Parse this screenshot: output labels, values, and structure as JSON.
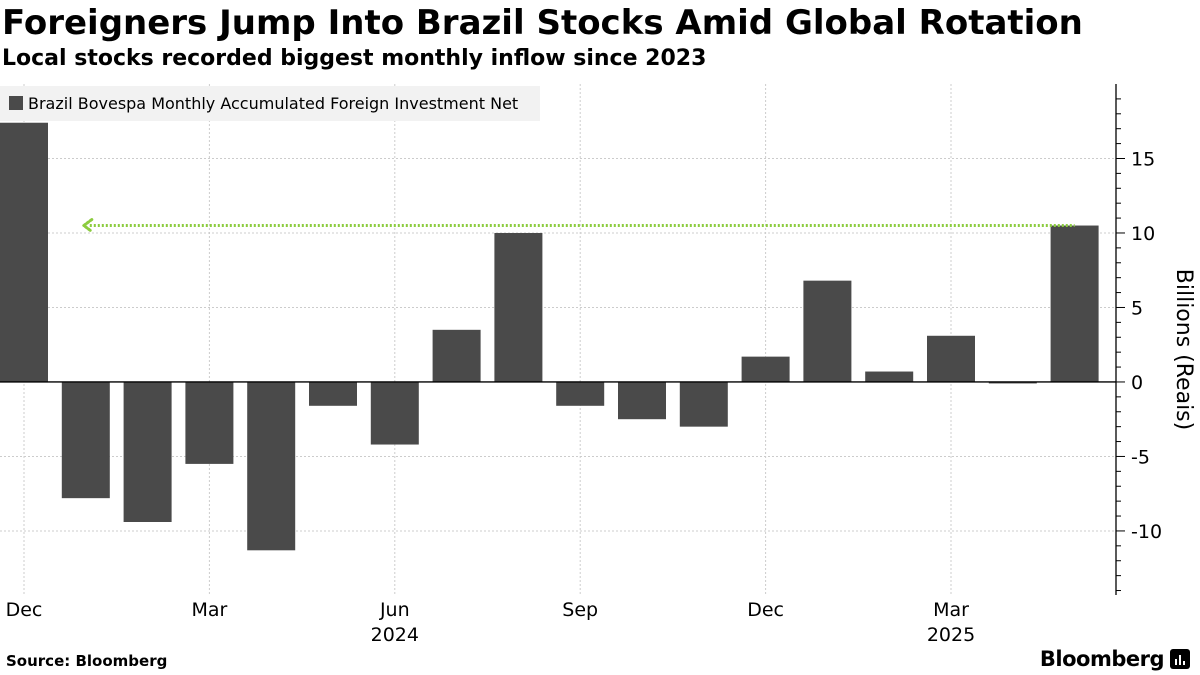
{
  "header": {
    "title": "Foreigners Jump Into Brazil Stocks Amid Global Rotation",
    "subtitle": "Local stocks recorded biggest monthly inflow since 2023"
  },
  "footer": {
    "source": "Source:  Bloomberg",
    "brand": "Bloomberg"
  },
  "colors": {
    "bar": "#4a4a4a",
    "grid": "#cccccc",
    "reference_line": "#8ccc3f",
    "legend_bg": "#f2f2f2"
  },
  "icons": {
    "brand_icon": "bar-chart-icon"
  },
  "chart_data": {
    "type": "bar",
    "categories": [
      "Dec 2023",
      "Jan 2024",
      "Feb 2024",
      "Mar 2024",
      "Apr 2024",
      "May 2024",
      "Jun 2024",
      "Jul 2024",
      "Aug 2024",
      "Sep 2024",
      "Oct 2024",
      "Nov 2024",
      "Dec 2024",
      "Jan 2025",
      "Feb 2025",
      "Mar 2025",
      "Apr 2025",
      "May 2025"
    ],
    "series": [
      {
        "name": "Brazil Bovespa Monthly Accumulated Foreign Investment Net",
        "values": [
          17.4,
          -7.8,
          -9.4,
          -5.5,
          -11.3,
          -1.6,
          -4.2,
          3.5,
          10.0,
          -1.6,
          -2.5,
          -3.0,
          1.7,
          6.8,
          0.7,
          3.1,
          -0.1,
          10.5
        ]
      }
    ],
    "x_tick_labels": [
      {
        "label": "Dec",
        "category_index": 0,
        "year": ""
      },
      {
        "label": "Mar",
        "category_index": 3,
        "year": ""
      },
      {
        "label": "Jun",
        "category_index": 6,
        "year": "2024"
      },
      {
        "label": "Sep",
        "category_index": 9,
        "year": ""
      },
      {
        "label": "Dec",
        "category_index": 12,
        "year": ""
      },
      {
        "label": "Mar",
        "category_index": 15,
        "year": "2025"
      }
    ],
    "y_ticks": [
      15,
      10,
      5,
      0,
      -5,
      -10
    ],
    "y_tick_labels": [
      "15",
      "10",
      "5",
      "0",
      "-5",
      "-10"
    ],
    "ylim": [
      -14.3,
      20
    ],
    "ylabel": "Billions (Reais)",
    "y_axis_position": "right",
    "reference_line": {
      "value": 10.5,
      "from_category": 1,
      "to_category": 17,
      "style": "dotted-arrow"
    },
    "grid": true,
    "legend_position": "top-left"
  }
}
